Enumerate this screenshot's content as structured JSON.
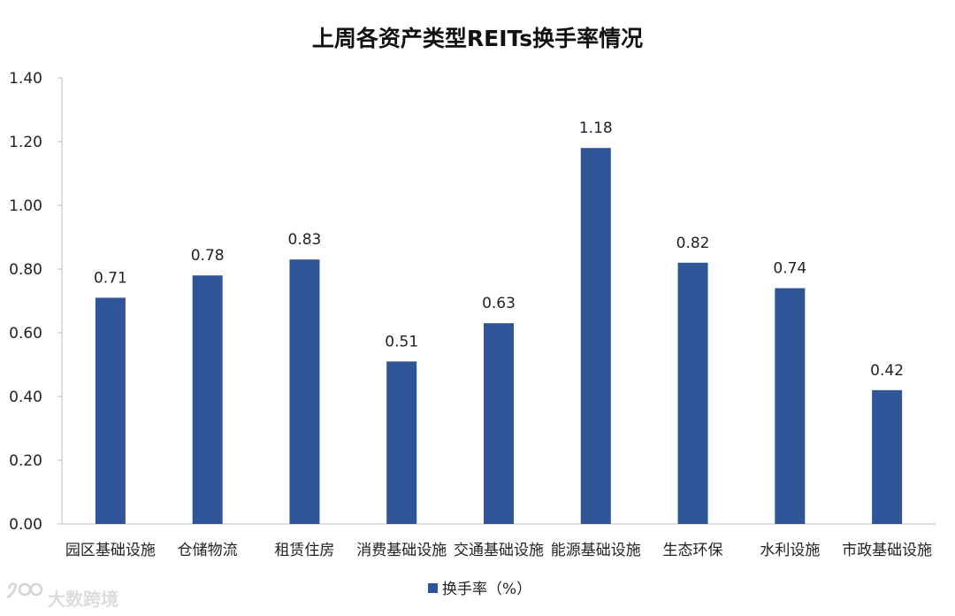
{
  "chart_data": {
    "type": "bar",
    "title": "上周各资产类型REITs换手率情况",
    "categories": [
      "园区基础设施",
      "仓储物流",
      "租赁住房",
      "消费基础设施",
      "交通基础设施",
      "能源基础设施",
      "生态环保",
      "水利设施",
      "市政基础设施"
    ],
    "series": [
      {
        "name": "换手率（%）",
        "values": [
          0.71,
          0.78,
          0.83,
          0.51,
          0.63,
          1.18,
          0.82,
          0.74,
          0.42
        ],
        "color": "#2f5597"
      }
    ],
    "data_labels": [
      "0.71",
      "0.78",
      "0.83",
      "0.51",
      "0.63",
      "1.18",
      "0.82",
      "0.74",
      "0.42"
    ],
    "ylim": [
      0,
      1.4
    ],
    "yticks": [
      "0.00",
      "0.20",
      "0.40",
      "0.60",
      "0.80",
      "1.00",
      "1.20",
      "1.40"
    ],
    "grid": false,
    "legend_position": "bottom"
  },
  "watermark": {
    "text": "大数跨境",
    "icon": "watermark-logo-icon"
  }
}
